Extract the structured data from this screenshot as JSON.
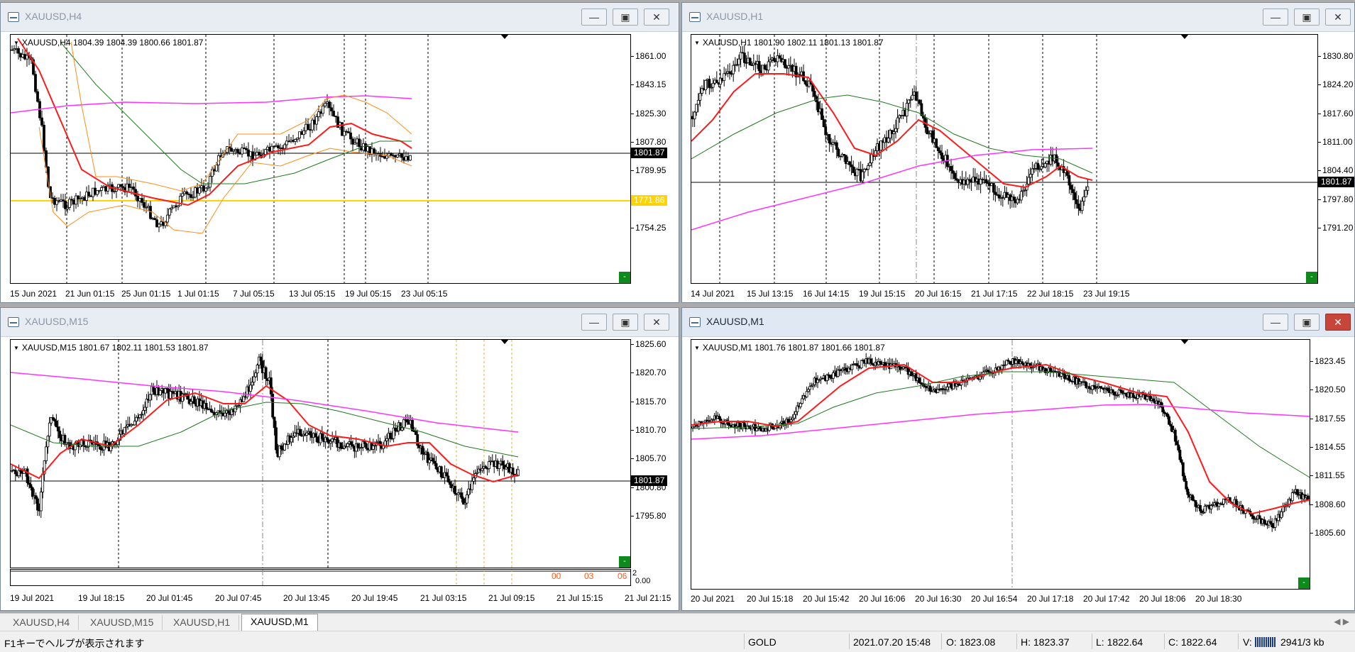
{
  "windows": {
    "h4": {
      "title": "XAUUSD,H4",
      "info": "XAUUSD,H4  1804.39 1804.39 1800.66 1801.87",
      "prices": [
        "1861.00",
        "1843.15",
        "1825.30",
        "1807.80",
        "1789.95",
        "1754.25"
      ],
      "current_price": "1801.87",
      "hline_price": "1771.86",
      "times": [
        "15 Jun 2021",
        "21 Jun 01:15",
        "25 Jun 01:15",
        "1 Jul 01:15",
        "7 Jul 05:15",
        "13 Jul 05:15",
        "19 Jul 05:15",
        "23 Jul 05:15"
      ]
    },
    "h1": {
      "title": "XAUUSD,H1",
      "info": "XAUUSD,H1  1801.90 1802.11 1801.13 1801.87",
      "prices": [
        "1830.80",
        "1824.20",
        "1817.60",
        "1811.00",
        "1804.40",
        "1797.80",
        "1791.20"
      ],
      "current_price": "1801.87",
      "times": [
        "14 Jul 2021",
        "15 Jul 13:15",
        "16 Jul 14:15",
        "19 Jul 15:15",
        "20 Jul 16:15",
        "21 Jul 17:15",
        "22 Jul 18:15",
        "23 Jul 19:15"
      ]
    },
    "m15": {
      "title": "XAUUSD,M15",
      "info": "XAUUSD,M15  1801.67 1802.11 1801.53 1801.87",
      "prices": [
        "1825.60",
        "1820.70",
        "1815.70",
        "1810.70",
        "1805.70",
        "1800.80",
        "1795.80"
      ],
      "current_price": "1801.87",
      "sub_values": [
        "2",
        "0.00"
      ],
      "session_labels": [
        "00",
        "03",
        "06"
      ],
      "times": [
        "19 Jul 2021",
        "19 Jul 18:15",
        "20 Jul 01:45",
        "20 Jul 07:45",
        "20 Jul 13:45",
        "20 Jul 19:45",
        "21 Jul 03:15",
        "21 Jul 09:15",
        "21 Jul 15:15",
        "21 Jul 21:15"
      ]
    },
    "m1": {
      "title": "XAUUSD,M1",
      "info": "XAUUSD,M1  1801.76 1801.87 1801.66 1801.87",
      "prices": [
        "1823.45",
        "1820.50",
        "1817.55",
        "1814.55",
        "1811.55",
        "1808.60",
        "1805.60"
      ],
      "times": [
        "20 Jul 2021",
        "20 Jul 15:18",
        "20 Jul 15:42",
        "20 Jul 16:06",
        "20 Jul 16:30",
        "20 Jul 16:54",
        "20 Jul 17:18",
        "20 Jul 17:42",
        "20 Jul 18:06",
        "20 Jul 18:30"
      ]
    }
  },
  "tabs": [
    "XAUUSD,H4",
    "XAUUSD,M15",
    "XAUUSD,H1",
    "XAUUSD,M1"
  ],
  "active_tab": "XAUUSD,M1",
  "status": {
    "help": "F1キーでヘルプが表示されます",
    "profile": "GOLD",
    "datetime": "2021.07.20 15:48",
    "open": "O: 1823.08",
    "high": "H: 1823.37",
    "low": "L: 1822.64",
    "close": "C: 1822.64",
    "volume": "V: 52",
    "traffic": "2941/3 kb"
  },
  "colors": {
    "ma_fast": "#ff1a1a",
    "ma_mid": "#1f7a1f",
    "ma_slow": "#ff33ff",
    "bands": "#ff8c1a",
    "hline": "#ffd400",
    "close_btn_active": "#c8453a"
  }
}
